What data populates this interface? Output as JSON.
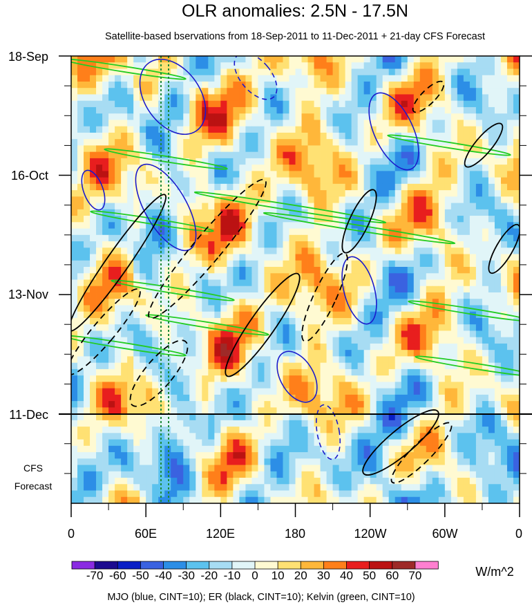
{
  "chart_data": {
    "type": "heatmap",
    "title": "OLR anomalies: 2.5N - 17.5N",
    "subtitle": "Satellite-based bservations from 18-Sep-2011 to 11-Dec-2011 + 21-day CFS Forecast",
    "x_ticks": [
      "0",
      "60E",
      "120E",
      "180",
      "120W",
      "60W",
      "0"
    ],
    "x_tick_lon": [
      0,
      60,
      120,
      180,
      240,
      300,
      360
    ],
    "xlim": [
      0,
      360
    ],
    "y_ticks": [
      "18-Sep",
      "16-Oct",
      "13-Nov",
      "11-Dec"
    ],
    "y_tick_day": [
      0,
      28,
      56,
      84
    ],
    "ylim_days": [
      0,
      105
    ],
    "observation_end_label": "11-Dec",
    "forecast_label_line1": "CFS",
    "forecast_label_line2": "Forecast",
    "colorbar": {
      "labels": [
        "-70",
        "-60",
        "-50",
        "-40",
        "-30",
        "-20",
        "-10",
        "0",
        "10",
        "20",
        "30",
        "40",
        "50",
        "60",
        "70"
      ],
      "colors": [
        "#8a2be2",
        "#1c0b8f",
        "#0a1fc6",
        "#3a62e0",
        "#2c8ee6",
        "#5cc2ee",
        "#a7dcf3",
        "#e1f5f8",
        "#fffad2",
        "#ffe173",
        "#ffb73a",
        "#ff7f1a",
        "#e81e1e",
        "#bb1212",
        "#9e2a28",
        "#ff7fd0"
      ],
      "units": "W/m^2"
    },
    "overlays": [
      {
        "name": "MJO",
        "color": "#1a1acc"
      },
      {
        "name": "ER",
        "color": "#000000"
      },
      {
        "name": "Kelvin",
        "color": "#22cc22"
      }
    ],
    "footer": "MJO (blue, CINT=10); ER (black, CINT=10); Kelvin (green, CINT=10)"
  }
}
